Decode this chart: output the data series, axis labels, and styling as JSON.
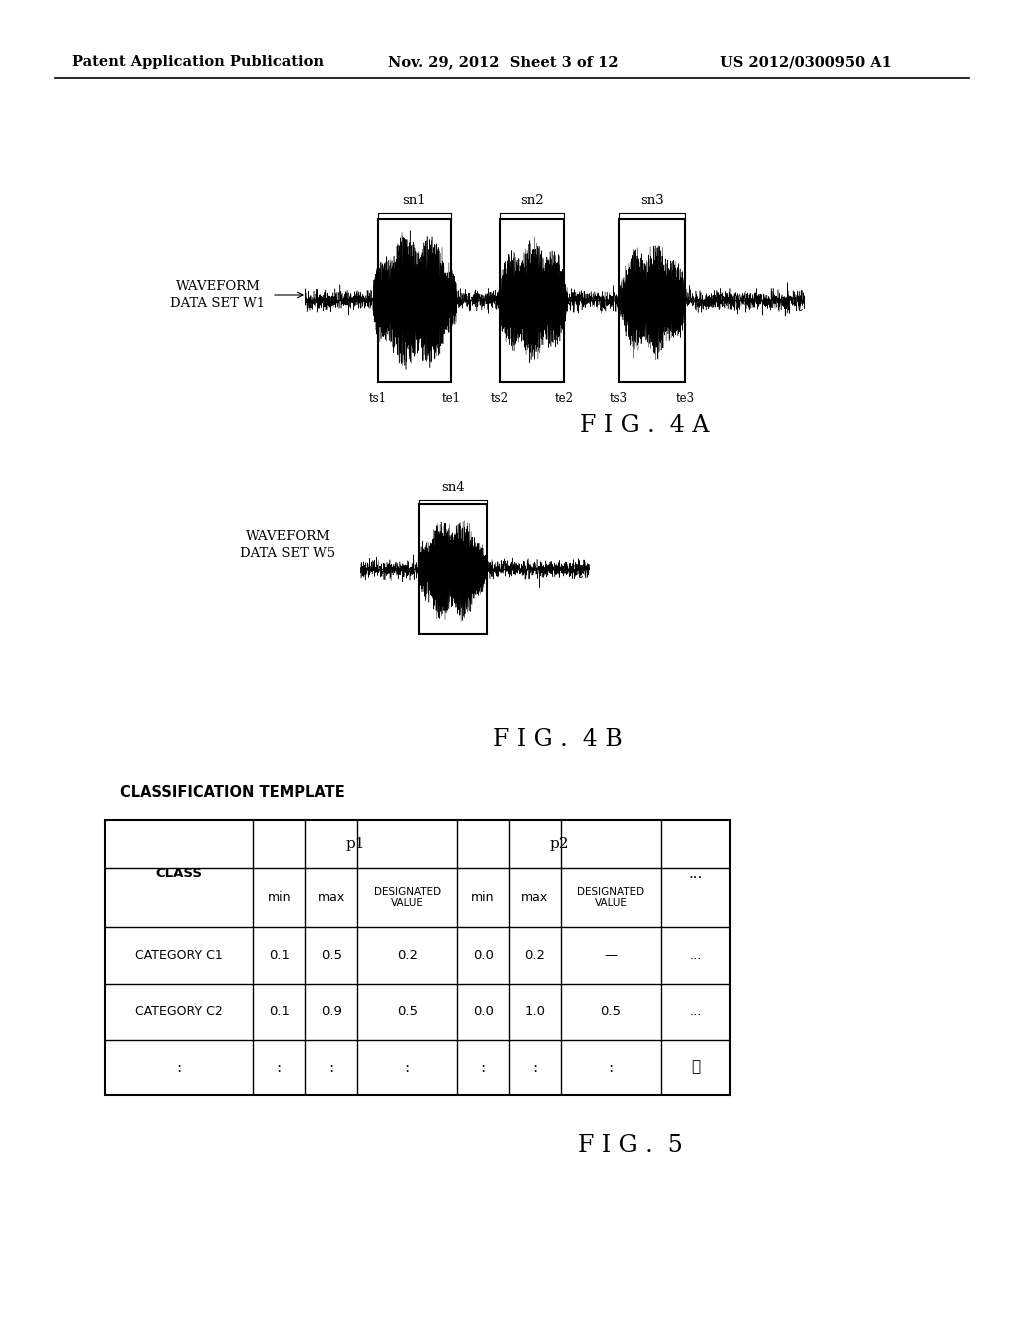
{
  "bg_color": "#ffffff",
  "text_color": "#000000",
  "header_line1": "Patent Application Publication",
  "header_date": "Nov. 29, 2012  Sheet 3 of 12",
  "header_patent": "US 2012/0300950 A1",
  "fig4a_label": "F I G .  4 A",
  "fig4b_label": "F I G .  4 B",
  "fig5_label": "F I G .  5",
  "waveform_label_4a": "WAVEFORM\nDATA SET W1",
  "waveform_label_4b": "WAVEFORM\nDATA SET W5",
  "table_title": "CLASSIFICATION TEMPLATE",
  "table_row1": [
    "CATEGORY C1",
    "0.1",
    "0.5",
    "0.2",
    "0.0",
    "0.2",
    "—",
    "..."
  ],
  "table_row2": [
    "CATEGORY C2",
    "0.1",
    "0.9",
    "0.5",
    "0.0",
    "1.0",
    "0.5",
    "..."
  ],
  "table_row3": [
    ":",
    ":",
    ":",
    ":",
    ":",
    ":",
    ":",
    "⋱"
  ]
}
